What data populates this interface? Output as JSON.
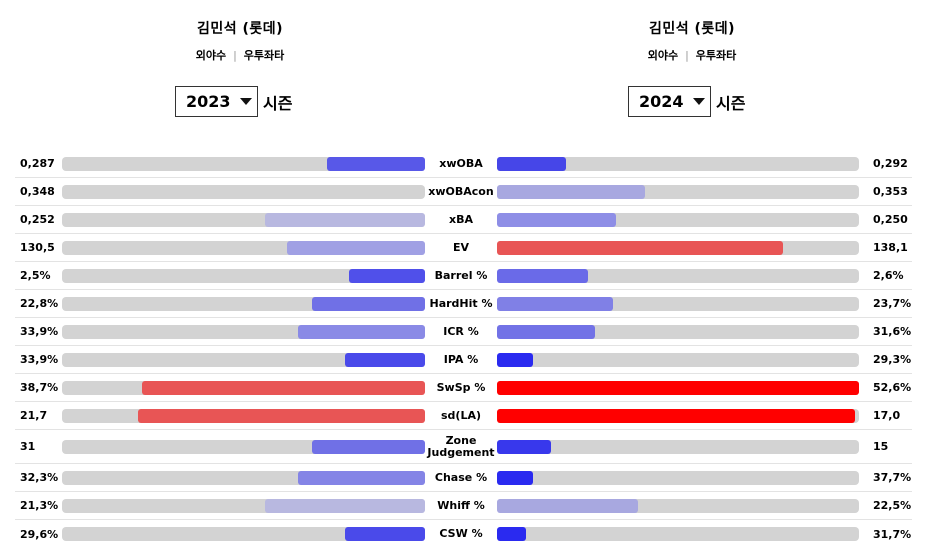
{
  "players": [
    {
      "name": "김민석 (롯데)",
      "position": "외야수",
      "bats_throws": "우투좌타",
      "season": "2023",
      "season_suffix": "시즌"
    },
    {
      "name": "김민석 (롯데)",
      "position": "외야수",
      "bats_throws": "우투좌타",
      "season": "2024",
      "season_suffix": "시즌"
    }
  ],
  "colors": {
    "track": "#d3d3d3",
    "strong_blue": "#2a2af0",
    "mid_blue": "#5858e8",
    "light_blue": "#a0a0e0",
    "pale_blue": "#b8b8e0",
    "red": "#e85555",
    "strong_red": "#ff0000"
  },
  "stats": [
    {
      "label": "xwOBA",
      "left_value": "0,287",
      "right_value": "0,292",
      "left_fill": 0.27,
      "right_fill": 0.19,
      "left_color": "#5858e8",
      "right_color": "#4646e8"
    },
    {
      "label": "xwOBAcon",
      "left_value": "0,348",
      "right_value": "0,353",
      "left_fill": 0.0,
      "right_fill": 0.41,
      "left_color": "#c8c8dc",
      "right_color": "#a8a8e0"
    },
    {
      "label": "xBA",
      "left_value": "0,252",
      "right_value": "0,250",
      "left_fill": 0.44,
      "right_fill": 0.33,
      "left_color": "#b8b8e0",
      "right_color": "#8e8ee6"
    },
    {
      "label": "EV",
      "left_value": "130,5",
      "right_value": "138,1",
      "left_fill": 0.38,
      "right_fill": 0.79,
      "left_color": "#a0a0e4",
      "right_color": "#e85555"
    },
    {
      "label": "Barrel %",
      "left_value": "2,5%",
      "right_value": "2,6%",
      "left_fill": 0.21,
      "right_fill": 0.25,
      "left_color": "#5050ea",
      "right_color": "#6a6ae8"
    },
    {
      "label": "HardHit %",
      "left_value": "22,8%",
      "right_value": "23,7%",
      "left_fill": 0.31,
      "right_fill": 0.32,
      "left_color": "#7070e6",
      "right_color": "#8080e6"
    },
    {
      "label": "ICR %",
      "left_value": "33,9%",
      "right_value": "31,6%",
      "left_fill": 0.35,
      "right_fill": 0.27,
      "left_color": "#8a8ae6",
      "right_color": "#7272e6"
    },
    {
      "label": "IPA %",
      "left_value": "33,9%",
      "right_value": "29,3%",
      "left_fill": 0.22,
      "right_fill": 0.1,
      "left_color": "#4a4aea",
      "right_color": "#2a2af0"
    },
    {
      "label": "SwSp %",
      "left_value": "38,7%",
      "right_value": "52,6%",
      "left_fill": 0.78,
      "right_fill": 1.0,
      "left_color": "#e85555",
      "right_color": "#ff0000"
    },
    {
      "label": "sd(LA)",
      "left_value": "21,7",
      "right_value": "17,0",
      "left_fill": 0.79,
      "right_fill": 0.99,
      "left_color": "#e85555",
      "right_color": "#ff0000"
    },
    {
      "label": "Zone Judgement",
      "left_value": "31",
      "right_value": "15",
      "left_fill": 0.31,
      "right_fill": 0.15,
      "left_color": "#7070e6",
      "right_color": "#3838ec",
      "tall": true
    },
    {
      "label": "Chase %",
      "left_value": "32,3%",
      "right_value": "37,7%",
      "left_fill": 0.35,
      "right_fill": 0.1,
      "left_color": "#8484e6",
      "right_color": "#2a2af0"
    },
    {
      "label": "Whiff %",
      "left_value": "21,3%",
      "right_value": "22,5%",
      "left_fill": 0.44,
      "right_fill": 0.39,
      "left_color": "#b8b8e0",
      "right_color": "#a8a8e0"
    },
    {
      "label": "CSW %",
      "left_value": "29,6%",
      "right_value": "31,7%",
      "left_fill": 0.22,
      "right_fill": 0.08,
      "left_color": "#4a4aea",
      "right_color": "#2a2af0"
    }
  ]
}
